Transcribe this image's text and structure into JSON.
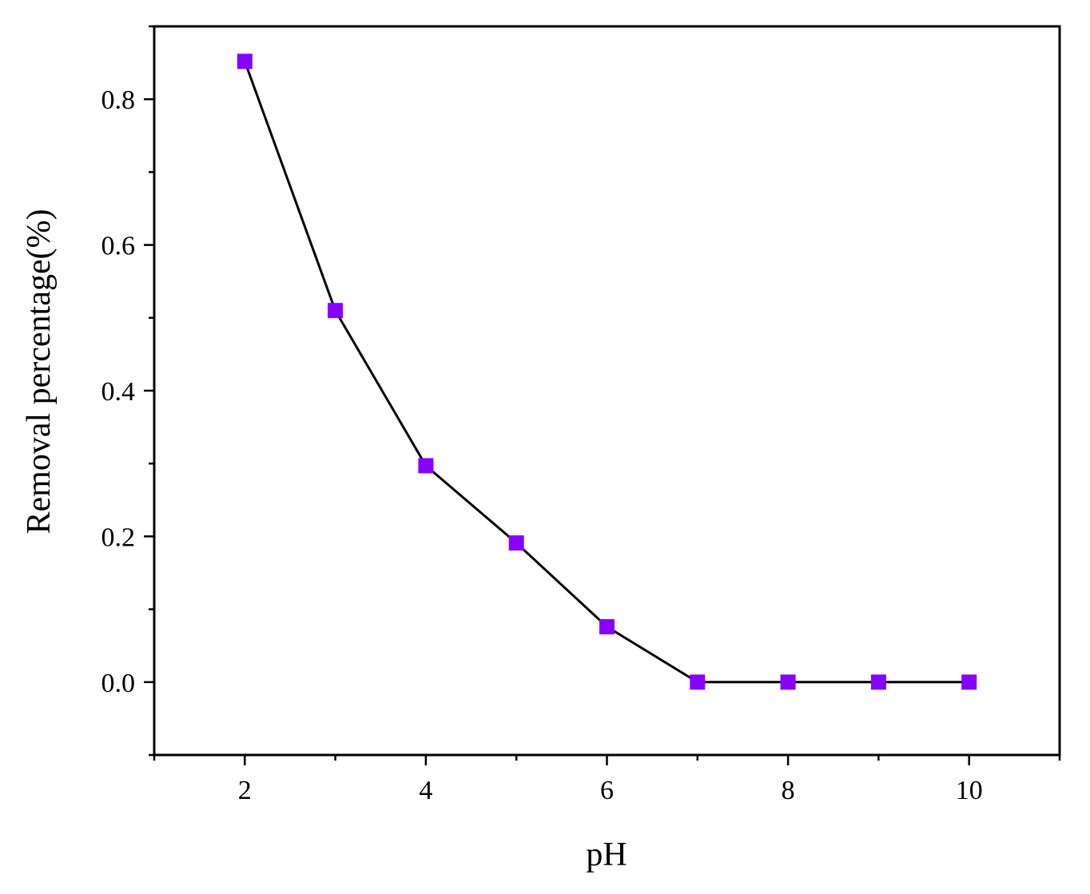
{
  "chart_data": {
    "type": "line",
    "xlabel": "pH",
    "ylabel": "Removal percentage(%)",
    "xlim": [
      1,
      11
    ],
    "ylim": [
      -0.1,
      0.9
    ],
    "xticks": [
      2,
      4,
      6,
      8,
      10
    ],
    "xtick_labels": [
      "2",
      "4",
      "6",
      "8",
      "10"
    ],
    "yticks": [
      0.0,
      0.2,
      0.4,
      0.6,
      0.8
    ],
    "ytick_labels": [
      "0.0",
      "0.2",
      "0.4",
      "0.6",
      "0.8"
    ],
    "grid": false,
    "series": [
      {
        "marker": "square",
        "marker_color": "#8800ff",
        "line_color": "#000000",
        "x": [
          2,
          3,
          4,
          5,
          6,
          7,
          8,
          9,
          10
        ],
        "values": [
          0.852,
          0.51,
          0.297,
          0.191,
          0.076,
          0.0,
          0.0,
          0.0,
          0.0
        ]
      }
    ]
  }
}
